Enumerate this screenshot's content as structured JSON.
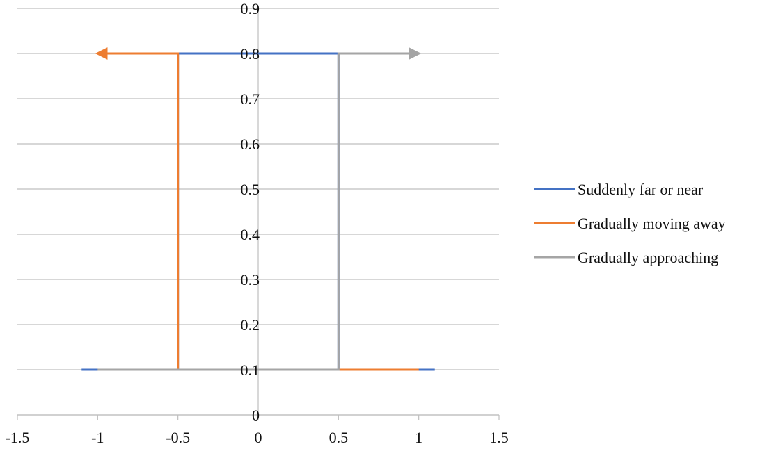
{
  "chart_data": {
    "type": "line",
    "title": "",
    "xlabel": "",
    "ylabel": "",
    "xlim": [
      -1.5,
      1.5
    ],
    "ylim": [
      0,
      0.9
    ],
    "x_ticks": [
      "-1.5",
      "-1",
      "-0.5",
      "0",
      "0.5",
      "1",
      "1.5"
    ],
    "y_ticks": [
      "0",
      "0.1",
      "0.2",
      "0.3",
      "0.4",
      "0.5",
      "0.6",
      "0.7",
      "0.8",
      "0.9"
    ],
    "grid": "horizontal",
    "legend_position": "right",
    "series": [
      {
        "name": "Suddenly far or near",
        "color": "#4472c4",
        "arrow": false,
        "points": [
          [
            -1.1,
            0.1
          ],
          [
            -0.5,
            0.1
          ],
          [
            -0.5,
            0.8
          ],
          [
            0.5,
            0.8
          ],
          [
            0.5,
            0.1
          ],
          [
            1.1,
            0.1
          ]
        ]
      },
      {
        "name": "Gradually moving away",
        "color": "#ed7d31",
        "arrow": true,
        "points": [
          [
            1,
            0.1
          ],
          [
            -0.5,
            0.1
          ],
          [
            -0.5,
            0.8
          ],
          [
            -1,
            0.8
          ]
        ]
      },
      {
        "name": "Gradually approaching",
        "color": "#a5a5a5",
        "arrow": true,
        "points": [
          [
            -1,
            0.1
          ],
          [
            0.5,
            0.1
          ],
          [
            0.5,
            0.8
          ],
          [
            1,
            0.8
          ]
        ]
      }
    ]
  }
}
